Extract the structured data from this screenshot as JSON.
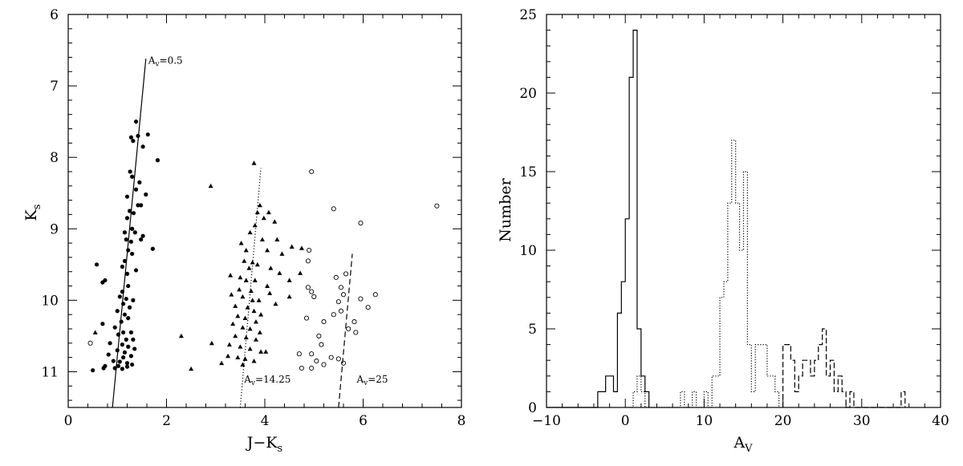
{
  "chart_data": [
    {
      "type": "scatter",
      "xlabel": "J−K",
      "xlabel_sub": "s",
      "ylabel": "K",
      "ylabel_sub": "s",
      "xlim": [
        0,
        8
      ],
      "ylim": [
        11.5,
        6
      ],
      "y_inverted": true,
      "xticks": [
        0,
        2,
        4,
        6,
        8
      ],
      "yticks": [
        6,
        7,
        8,
        9,
        10,
        11
      ],
      "grid": false,
      "series": [
        {
          "marker": "filled-circle",
          "points": [
            [
              1.38,
              7.5
            ],
            [
              1.62,
              7.68
            ],
            [
              1.42,
              7.7
            ],
            [
              1.28,
              7.72
            ],
            [
              1.32,
              7.77
            ],
            [
              1.52,
              7.85
            ],
            [
              1.82,
              8.04
            ],
            [
              1.26,
              8.2
            ],
            [
              1.3,
              8.27
            ],
            [
              1.45,
              8.35
            ],
            [
              1.38,
              8.45
            ],
            [
              1.2,
              8.55
            ],
            [
              1.58,
              8.52
            ],
            [
              1.42,
              8.67
            ],
            [
              1.48,
              8.67
            ],
            [
              1.25,
              8.75
            ],
            [
              1.33,
              8.78
            ],
            [
              1.2,
              8.85
            ],
            [
              1.15,
              9.05
            ],
            [
              1.3,
              9.0
            ],
            [
              1.36,
              9.05
            ],
            [
              1.18,
              9.15
            ],
            [
              1.28,
              9.18
            ],
            [
              1.48,
              9.15
            ],
            [
              1.52,
              9.1
            ],
            [
              1.72,
              9.28
            ],
            [
              1.22,
              9.3
            ],
            [
              1.3,
              9.35
            ],
            [
              1.15,
              9.45
            ],
            [
              0.58,
              9.5
            ],
            [
              1.1,
              9.53
            ],
            [
              1.38,
              9.58
            ],
            [
              1.2,
              9.63
            ],
            [
              0.75,
              9.72
            ],
            [
              0.7,
              9.75
            ],
            [
              1.22,
              9.8
            ],
            [
              1.1,
              9.88
            ],
            [
              1.05,
              9.95
            ],
            [
              1.18,
              9.98
            ],
            [
              1.32,
              10.0
            ],
            [
              1.12,
              10.05
            ],
            [
              1.25,
              10.1
            ],
            [
              1.0,
              10.15
            ],
            [
              1.15,
              10.2
            ],
            [
              1.22,
              10.25
            ],
            [
              1.08,
              10.3
            ],
            [
              0.7,
              10.33
            ],
            [
              0.95,
              10.38
            ],
            [
              1.12,
              10.45
            ],
            [
              1.02,
              10.48
            ],
            [
              1.28,
              10.45
            ],
            [
              1.18,
              10.55
            ],
            [
              1.32,
              10.55
            ],
            [
              0.85,
              10.6
            ],
            [
              1.1,
              10.62
            ],
            [
              1.22,
              10.65
            ],
            [
              1.35,
              10.68
            ],
            [
              1.0,
              10.7
            ],
            [
              1.15,
              10.73
            ],
            [
              0.82,
              10.76
            ],
            [
              1.28,
              10.78
            ],
            [
              1.12,
              10.8
            ],
            [
              0.92,
              10.85
            ],
            [
              1.05,
              10.86
            ],
            [
              1.2,
              10.88
            ],
            [
              1.3,
              10.9
            ],
            [
              0.75,
              10.92
            ],
            [
              1.02,
              10.92
            ],
            [
              0.5,
              10.98
            ],
            [
              0.72,
              10.95
            ],
            [
              1.1,
              10.96
            ],
            [
              1.2,
              10.93
            ],
            [
              0.95,
              10.95
            ]
          ]
        },
        {
          "marker": "filled-triangle",
          "points": [
            [
              2.9,
              8.4
            ],
            [
              3.78,
              8.08
            ],
            [
              3.85,
              8.77
            ],
            [
              3.9,
              8.67
            ],
            [
              4.08,
              8.77
            ],
            [
              3.98,
              8.85
            ],
            [
              3.8,
              8.95
            ],
            [
              4.2,
              8.9
            ],
            [
              3.7,
              9.05
            ],
            [
              3.95,
              9.15
            ],
            [
              3.52,
              9.2
            ],
            [
              4.25,
              9.15
            ],
            [
              3.62,
              9.3
            ],
            [
              4.05,
              9.3
            ],
            [
              4.35,
              9.35
            ],
            [
              3.58,
              9.45
            ],
            [
              3.75,
              9.47
            ],
            [
              3.85,
              9.5
            ],
            [
              3.68,
              9.55
            ],
            [
              4.12,
              9.55
            ],
            [
              4.3,
              9.62
            ],
            [
              3.3,
              9.65
            ],
            [
              3.5,
              9.68
            ],
            [
              3.62,
              9.72
            ],
            [
              3.8,
              9.72
            ],
            [
              4.05,
              9.8
            ],
            [
              4.5,
              9.72
            ],
            [
              3.48,
              9.85
            ],
            [
              3.72,
              9.87
            ],
            [
              4.1,
              9.9
            ],
            [
              3.32,
              9.92
            ],
            [
              3.55,
              9.95
            ],
            [
              3.75,
              10.0
            ],
            [
              3.88,
              10.0
            ],
            [
              4.22,
              10.05
            ],
            [
              3.4,
              10.08
            ],
            [
              3.65,
              10.1
            ],
            [
              3.78,
              10.15
            ],
            [
              3.92,
              10.2
            ],
            [
              3.45,
              10.22
            ],
            [
              3.6,
              10.25
            ],
            [
              3.82,
              10.3
            ],
            [
              3.35,
              10.33
            ],
            [
              3.55,
              10.38
            ],
            [
              3.7,
              10.4
            ],
            [
              3.9,
              10.45
            ],
            [
              3.4,
              10.5
            ],
            [
              3.62,
              10.52
            ],
            [
              3.82,
              10.55
            ],
            [
              2.92,
              10.6
            ],
            [
              3.28,
              10.62
            ],
            [
              3.5,
              10.65
            ],
            [
              3.7,
              10.68
            ],
            [
              3.92,
              10.72
            ],
            [
              4.02,
              10.72
            ],
            [
              3.25,
              10.78
            ],
            [
              3.45,
              10.8
            ],
            [
              3.6,
              10.82
            ],
            [
              3.78,
              10.85
            ],
            [
              3.12,
              10.88
            ],
            [
              3.55,
              10.9
            ],
            [
              2.3,
              10.5
            ],
            [
              2.5,
              10.96
            ],
            [
              0.55,
              10.45
            ],
            [
              4.75,
              9.27
            ],
            [
              4.72,
              9.62
            ],
            [
              4.5,
              9.95
            ],
            [
              4.55,
              9.25
            ]
          ]
        },
        {
          "marker": "open-circle",
          "points": [
            [
              4.95,
              8.2
            ],
            [
              7.5,
              8.68
            ],
            [
              5.4,
              8.72
            ],
            [
              5.95,
              8.92
            ],
            [
              4.9,
              9.3
            ],
            [
              4.88,
              9.45
            ],
            [
              5.65,
              9.63
            ],
            [
              5.45,
              9.68
            ],
            [
              5.55,
              9.82
            ],
            [
              4.88,
              9.82
            ],
            [
              5.6,
              9.92
            ],
            [
              6.25,
              9.92
            ],
            [
              4.95,
              9.88
            ],
            [
              5.0,
              9.95
            ],
            [
              5.95,
              9.98
            ],
            [
              5.5,
              10.02
            ],
            [
              6.1,
              10.1
            ],
            [
              5.55,
              10.15
            ],
            [
              5.4,
              10.2
            ],
            [
              5.82,
              10.3
            ],
            [
              4.85,
              10.25
            ],
            [
              5.2,
              10.3
            ],
            [
              5.7,
              10.4
            ],
            [
              5.85,
              10.45
            ],
            [
              5.1,
              10.5
            ],
            [
              5.15,
              10.62
            ],
            [
              0.45,
              10.6
            ],
            [
              4.7,
              10.75
            ],
            [
              4.95,
              10.75
            ],
            [
              5.5,
              10.82
            ],
            [
              5.6,
              10.88
            ],
            [
              5.35,
              10.8
            ],
            [
              5.2,
              10.9
            ],
            [
              4.95,
              10.95
            ],
            [
              4.75,
              10.95
            ],
            [
              5.05,
              10.85
            ]
          ]
        }
      ],
      "lines": [
        {
          "style": "solid",
          "x": [
            0.9,
            1.58
          ],
          "y": [
            11.5,
            6.62
          ]
        },
        {
          "style": "dotted",
          "x": [
            3.5,
            3.92
          ],
          "y": [
            11.5,
            8.15
          ]
        },
        {
          "style": "dashed",
          "x": [
            5.5,
            5.78
          ],
          "y": [
            11.5,
            9.35
          ]
        }
      ],
      "annotations": [
        {
          "label": "A",
          "sub": "v",
          "text": "=0.5",
          "x": 1.58,
          "y": 6.69
        },
        {
          "label": "A",
          "sub": "v",
          "text": "=14.25",
          "x": 3.53,
          "y": 11.15
        },
        {
          "label": "A",
          "sub": "v",
          "text": "=25",
          "x": 5.82,
          "y": 11.15
        }
      ]
    },
    {
      "type": "histogram",
      "xlabel": "A",
      "xlabel_sub": "V",
      "ylabel": "Number",
      "xlim": [
        -10,
        40
      ],
      "ylim": [
        0,
        25
      ],
      "xticks": [
        -10,
        0,
        10,
        20,
        30,
        40
      ],
      "yticks": [
        0,
        5,
        10,
        15,
        20,
        25
      ],
      "grid": false,
      "series": [
        {
          "style": "solid",
          "steps": [
            [
              -10,
              0
            ],
            [
              -3.5,
              1
            ],
            [
              -2.5,
              2
            ],
            [
              -1.5,
              1
            ],
            [
              -1,
              6
            ],
            [
              -0.5,
              8
            ],
            [
              0,
              12
            ],
            [
              0.5,
              21
            ],
            [
              1,
              24
            ],
            [
              1.5,
              5
            ],
            [
              2,
              2
            ],
            [
              2.5,
              1
            ],
            [
              3,
              0
            ]
          ]
        },
        {
          "style": "dotted",
          "steps": [
            [
              0.5,
              0
            ],
            [
              1,
              1
            ],
            [
              1.5,
              2
            ],
            [
              2,
              1
            ],
            [
              2.5,
              0
            ],
            [
              7,
              1
            ],
            [
              7.5,
              0
            ],
            [
              8.5,
              1
            ],
            [
              9,
              0
            ],
            [
              10,
              1
            ],
            [
              10.5,
              0
            ],
            [
              11,
              2
            ],
            [
              12,
              7
            ],
            [
              12.5,
              8
            ],
            [
              13,
              13
            ],
            [
              13.5,
              17
            ],
            [
              14,
              13
            ],
            [
              14.5,
              10
            ],
            [
              15,
              15
            ],
            [
              15.5,
              4
            ],
            [
              16,
              1
            ],
            [
              16.5,
              4
            ],
            [
              17.5,
              4
            ],
            [
              18,
              2
            ],
            [
              19,
              1
            ],
            [
              19.5,
              0
            ]
          ]
        },
        {
          "style": "dashed",
          "steps": [
            [
              20,
              4
            ],
            [
              21,
              3
            ],
            [
              21.5,
              1
            ],
            [
              22,
              2
            ],
            [
              22.5,
              3
            ],
            [
              23.5,
              2
            ],
            [
              24,
              3
            ],
            [
              24.5,
              4
            ],
            [
              25,
              5
            ],
            [
              25.5,
              2
            ],
            [
              26,
              3
            ],
            [
              26.5,
              1
            ],
            [
              27,
              2
            ],
            [
              27.5,
              1
            ],
            [
              28,
              0
            ],
            [
              28.5,
              1
            ],
            [
              29,
              0
            ],
            [
              35,
              1
            ],
            [
              35.5,
              0
            ]
          ]
        }
      ]
    }
  ]
}
